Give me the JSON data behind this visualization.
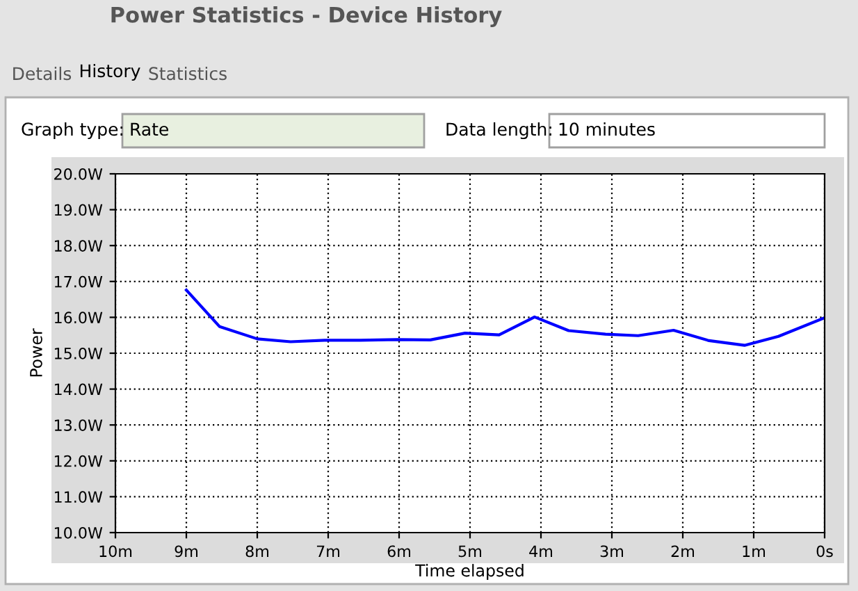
{
  "chart_data": {
    "type": "line",
    "title": "Power Statistics - Device History",
    "annotations": [
      "Details",
      "History",
      "Statistics",
      "Graph type:",
      "Rate",
      "Data length:",
      "10 minutes"
    ],
    "xlabel": "Time elapsed",
    "ylabel": "Power",
    "x": [
      9,
      8.53,
      8.0,
      7.53,
      7.05,
      6.55,
      6.03,
      5.56,
      5.07,
      4.59,
      4.09,
      3.61,
      3.09,
      2.63,
      2.13,
      1.63,
      1.13,
      0.65,
      0
    ],
    "series": [
      {
        "color": "#0000ff",
        "values": [
          16.76,
          15.74,
          15.4,
          15.32,
          15.36,
          15.36,
          15.38,
          15.37,
          15.56,
          15.51,
          16.01,
          15.63,
          15.53,
          15.49,
          15.64,
          15.35,
          15.22,
          15.47,
          15.99
        ]
      }
    ],
    "xlim": [
      10,
      0
    ],
    "xticks": [
      {
        "value": 10,
        "label": "10m"
      },
      {
        "value": 9,
        "label": "9m"
      },
      {
        "value": 8,
        "label": "8m"
      },
      {
        "value": 7,
        "label": "7m"
      },
      {
        "value": 6,
        "label": "6m"
      },
      {
        "value": 5,
        "label": "5m"
      },
      {
        "value": 4,
        "label": "4m"
      },
      {
        "value": 3,
        "label": "3m"
      },
      {
        "value": 2,
        "label": "2m"
      },
      {
        "value": 1,
        "label": "1m"
      },
      {
        "value": 0,
        "label": "0s"
      }
    ],
    "ylim": [
      10,
      20
    ],
    "yticks": [
      {
        "value": 10,
        "label": "10.0W"
      },
      {
        "value": 11,
        "label": "11.0W"
      },
      {
        "value": 12,
        "label": "12.0W"
      },
      {
        "value": 13,
        "label": "13.0W"
      },
      {
        "value": 14,
        "label": "14.0W"
      },
      {
        "value": 15,
        "label": "15.0W"
      },
      {
        "value": 16,
        "label": "16.0W"
      },
      {
        "value": 17,
        "label": "17.0W"
      },
      {
        "value": 18,
        "label": "18.0W"
      },
      {
        "value": 19,
        "label": "19.0W"
      },
      {
        "value": 20,
        "label": "20.0W"
      }
    ],
    "grid": true,
    "line_style": "solid",
    "marker": "none"
  }
}
